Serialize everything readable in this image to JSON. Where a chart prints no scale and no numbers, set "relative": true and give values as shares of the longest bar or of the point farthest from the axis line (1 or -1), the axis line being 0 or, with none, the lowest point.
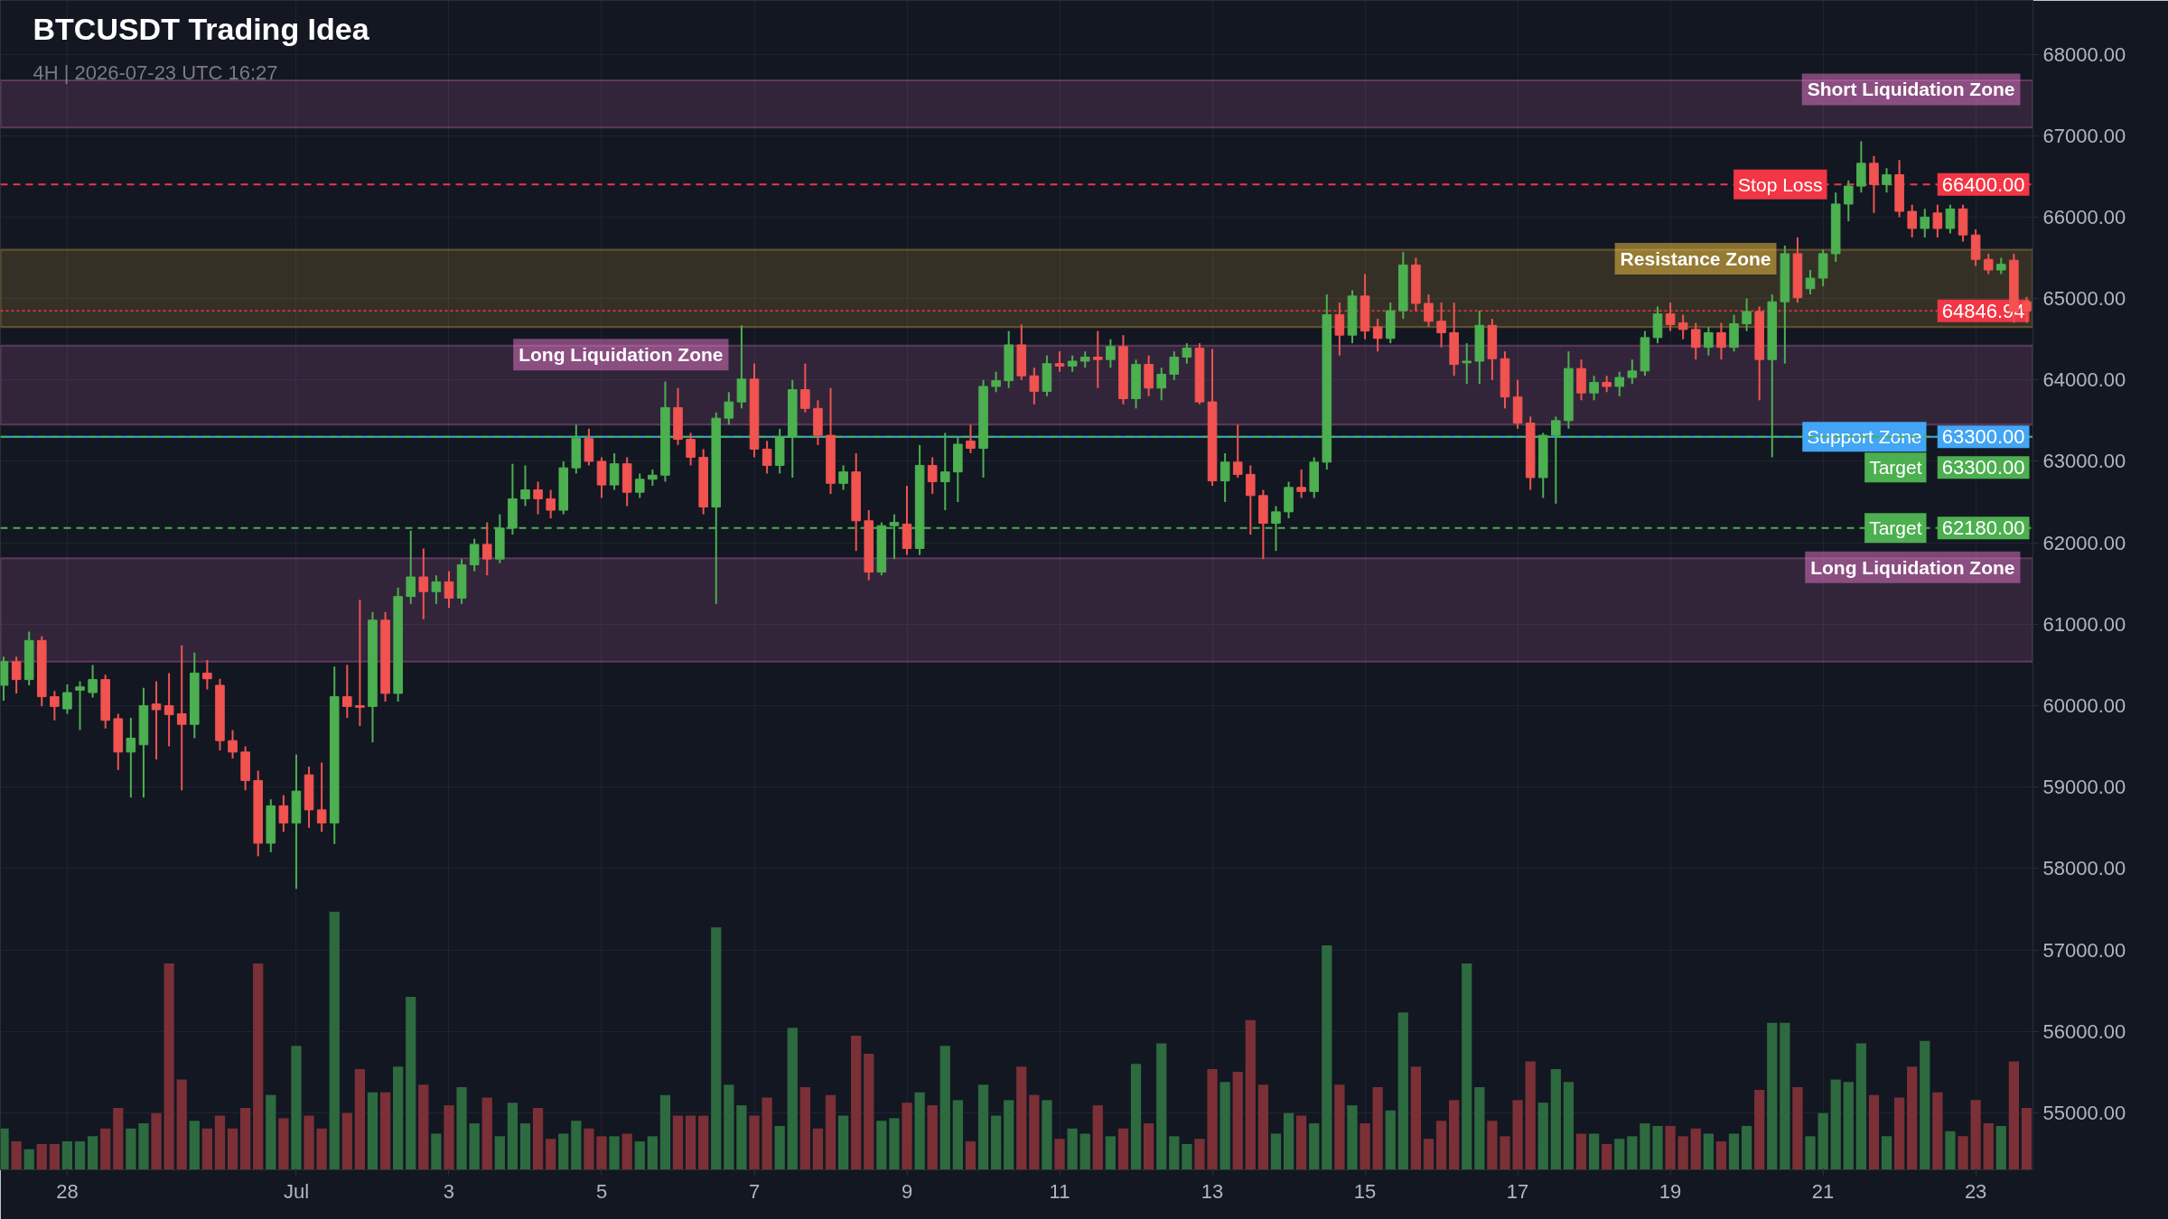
{
  "chart_data": [
    {
      "type": "candlestick",
      "title": "BTCUSDT Trading Idea",
      "subtitle": "4H | 2026-07-23 UTC 16:27",
      "x": [
        "2026-06-27T04:00",
        "2026-06-27T08:00",
        "2026-06-27T12:00",
        "2026-06-27T16:00",
        "2026-06-27T20:00",
        "2026-06-28T00:00",
        "2026-06-28T04:00",
        "2026-06-28T08:00",
        "2026-06-28T12:00",
        "2026-06-28T16:00",
        "2026-06-28T20:00",
        "2026-06-29T00:00",
        "2026-06-29T04:00",
        "2026-06-29T08:00",
        "2026-06-29T12:00",
        "2026-06-29T16:00",
        "2026-06-29T20:00",
        "2026-06-30T00:00",
        "2026-06-30T04:00",
        "2026-06-30T08:00",
        "2026-06-30T12:00",
        "2026-06-30T16:00",
        "2026-06-30T20:00",
        "2026-07-01T00:00",
        "2026-07-01T04:00",
        "2026-07-01T08:00",
        "2026-07-01T12:00",
        "2026-07-01T16:00",
        "2026-07-01T20:00",
        "2026-07-02T00:00",
        "2026-07-02T04:00",
        "2026-07-02T08:00",
        "2026-07-02T12:00",
        "2026-07-02T16:00",
        "2026-07-02T20:00",
        "2026-07-03T00:00",
        "2026-07-03T04:00",
        "2026-07-03T08:00",
        "2026-07-03T12:00",
        "2026-07-03T16:00",
        "2026-07-03T20:00",
        "2026-07-04T00:00",
        "2026-07-04T04:00",
        "2026-07-04T08:00",
        "2026-07-04T12:00",
        "2026-07-04T16:00",
        "2026-07-04T20:00",
        "2026-07-05T00:00",
        "2026-07-05T04:00",
        "2026-07-05T08:00",
        "2026-07-05T12:00",
        "2026-07-05T16:00",
        "2026-07-05T20:00",
        "2026-07-06T00:00",
        "2026-07-06T04:00",
        "2026-07-06T08:00",
        "2026-07-06T12:00",
        "2026-07-06T16:00",
        "2026-07-06T20:00",
        "2026-07-07T00:00",
        "2026-07-07T04:00",
        "2026-07-07T08:00",
        "2026-07-07T12:00",
        "2026-07-07T16:00",
        "2026-07-07T20:00",
        "2026-07-08T00:00",
        "2026-07-08T04:00",
        "2026-07-08T08:00",
        "2026-07-08T12:00",
        "2026-07-08T16:00",
        "2026-07-08T20:00",
        "2026-07-09T00:00",
        "2026-07-09T04:00",
        "2026-07-09T08:00",
        "2026-07-09T12:00",
        "2026-07-09T16:00",
        "2026-07-09T20:00",
        "2026-07-10T00:00",
        "2026-07-10T04:00",
        "2026-07-10T08:00",
        "2026-07-10T12:00",
        "2026-07-10T16:00",
        "2026-07-10T20:00",
        "2026-07-11T00:00",
        "2026-07-11T04:00",
        "2026-07-11T08:00",
        "2026-07-11T12:00",
        "2026-07-11T16:00",
        "2026-07-11T20:00",
        "2026-07-12T00:00",
        "2026-07-12T04:00",
        "2026-07-12T08:00",
        "2026-07-12T12:00",
        "2026-07-12T16:00",
        "2026-07-12T20:00",
        "2026-07-13T00:00",
        "2026-07-13T04:00",
        "2026-07-13T08:00",
        "2026-07-13T12:00",
        "2026-07-13T16:00",
        "2026-07-13T20:00",
        "2026-07-14T00:00",
        "2026-07-14T04:00",
        "2026-07-14T08:00",
        "2026-07-14T12:00",
        "2026-07-14T16:00",
        "2026-07-14T20:00",
        "2026-07-15T00:00",
        "2026-07-15T04:00",
        "2026-07-15T08:00",
        "2026-07-15T12:00",
        "2026-07-15T16:00",
        "2026-07-15T20:00",
        "2026-07-16T00:00",
        "2026-07-16T04:00",
        "2026-07-16T08:00",
        "2026-07-16T12:00",
        "2026-07-16T16:00",
        "2026-07-16T20:00",
        "2026-07-17T00:00",
        "2026-07-17T04:00",
        "2026-07-17T08:00",
        "2026-07-17T12:00",
        "2026-07-17T16:00",
        "2026-07-17T20:00",
        "2026-07-18T00:00",
        "2026-07-18T04:00",
        "2026-07-18T08:00",
        "2026-07-18T12:00",
        "2026-07-18T16:00",
        "2026-07-18T20:00",
        "2026-07-19T00:00",
        "2026-07-19T04:00",
        "2026-07-19T08:00",
        "2026-07-19T12:00",
        "2026-07-19T16:00",
        "2026-07-19T20:00",
        "2026-07-20T00:00",
        "2026-07-20T04:00",
        "2026-07-20T08:00",
        "2026-07-20T12:00",
        "2026-07-20T16:00",
        "2026-07-20T20:00",
        "2026-07-21T00:00",
        "2026-07-21T04:00",
        "2026-07-21T08:00",
        "2026-07-21T12:00",
        "2026-07-21T16:00",
        "2026-07-21T20:00",
        "2026-07-22T00:00",
        "2026-07-22T04:00",
        "2026-07-22T08:00",
        "2026-07-22T12:00",
        "2026-07-22T16:00",
        "2026-07-22T20:00",
        "2026-07-23T00:00",
        "2026-07-23T04:00",
        "2026-07-23T08:00",
        "2026-07-23T12:00",
        "2026-07-23T16:00"
      ],
      "ohlc": [
        [
          60250,
          60600,
          60060,
          60540
        ],
        [
          60540,
          60600,
          60150,
          60320
        ],
        [
          60320,
          60910,
          60250,
          60800
        ],
        [
          60800,
          60850,
          59990,
          60110
        ],
        [
          60110,
          60180,
          59820,
          59990
        ],
        [
          59960,
          60260,
          59900,
          60160
        ],
        [
          60190,
          60300,
          59700,
          60230
        ],
        [
          60160,
          60500,
          60100,
          60320
        ],
        [
          60320,
          60380,
          59720,
          59820
        ],
        [
          59840,
          59900,
          59210,
          59430
        ],
        [
          59430,
          59850,
          58870,
          59600
        ],
        [
          59520,
          60220,
          58870,
          60000
        ],
        [
          60020,
          60300,
          59340,
          59950
        ],
        [
          60000,
          60400,
          59500,
          59890
        ],
        [
          59900,
          60740,
          58960,
          59770
        ],
        [
          59770,
          60650,
          59600,
          60400
        ],
        [
          60400,
          60560,
          60200,
          60330
        ],
        [
          60250,
          60330,
          59450,
          59570
        ],
        [
          59570,
          59700,
          59350,
          59430
        ],
        [
          59430,
          59500,
          58960,
          59080
        ],
        [
          59080,
          59200,
          58150,
          58310
        ],
        [
          58310,
          58850,
          58200,
          58770
        ],
        [
          58770,
          58900,
          58450,
          58560
        ],
        [
          58560,
          59400,
          57750,
          58950
        ],
        [
          59150,
          59250,
          58500,
          58720
        ],
        [
          58720,
          59300,
          58450,
          58560
        ],
        [
          58560,
          60480,
          58300,
          60110
        ],
        [
          60110,
          60500,
          59850,
          59990
        ],
        [
          60000,
          61300,
          59750,
          59980
        ],
        [
          59990,
          61150,
          59550,
          61050
        ],
        [
          61050,
          61150,
          60050,
          60150
        ],
        [
          60150,
          61450,
          60050,
          61340
        ],
        [
          61340,
          62150,
          61250,
          61580
        ],
        [
          61580,
          61930,
          61060,
          61400
        ],
        [
          61400,
          61600,
          61250,
          61520
        ],
        [
          61520,
          61650,
          61200,
          61320
        ],
        [
          61320,
          61800,
          61250,
          61730
        ],
        [
          61730,
          62050,
          61650,
          61980
        ],
        [
          61980,
          62250,
          61600,
          61800
        ],
        [
          61800,
          62350,
          61750,
          62180
        ],
        [
          62180,
          62970,
          62100,
          62540
        ],
        [
          62540,
          62950,
          62450,
          62650
        ],
        [
          62650,
          62750,
          62350,
          62540
        ],
        [
          62540,
          62650,
          62300,
          62400
        ],
        [
          62400,
          63000,
          62350,
          62920
        ],
        [
          62920,
          63450,
          62850,
          63280
        ],
        [
          63280,
          63400,
          62950,
          63000
        ],
        [
          63000,
          63050,
          62550,
          62710
        ],
        [
          62710,
          63100,
          62650,
          62970
        ],
        [
          62970,
          63050,
          62450,
          62620
        ],
        [
          62620,
          62850,
          62550,
          62780
        ],
        [
          62780,
          62900,
          62700,
          62830
        ],
        [
          62830,
          63980,
          62750,
          63660
        ],
        [
          63660,
          63900,
          63200,
          63270
        ],
        [
          63270,
          63350,
          62950,
          63050
        ],
        [
          63050,
          63150,
          62350,
          62440
        ],
        [
          62440,
          63600,
          61250,
          63530
        ],
        [
          63530,
          63850,
          63450,
          63730
        ],
        [
          63730,
          64670,
          63650,
          64010
        ],
        [
          64010,
          64200,
          63050,
          63150
        ],
        [
          63150,
          63250,
          62850,
          62950
        ],
        [
          62950,
          63400,
          62850,
          63300
        ],
        [
          63300,
          64000,
          62800,
          63880
        ],
        [
          63880,
          64200,
          63600,
          63650
        ],
        [
          63650,
          63750,
          63200,
          63320
        ],
        [
          63320,
          63900,
          62600,
          62730
        ],
        [
          62730,
          62950,
          62650,
          62870
        ],
        [
          62870,
          63100,
          61900,
          62270
        ],
        [
          62270,
          62400,
          61540,
          61640
        ],
        [
          61640,
          62250,
          61600,
          62210
        ],
        [
          62210,
          62350,
          61800,
          62250
        ],
        [
          62230,
          62700,
          61850,
          61930
        ],
        [
          61930,
          63200,
          61850,
          62950
        ],
        [
          62950,
          63050,
          62600,
          62750
        ],
        [
          62750,
          63350,
          62400,
          62870
        ],
        [
          62870,
          63300,
          62500,
          63210
        ],
        [
          63250,
          63450,
          63100,
          63160
        ],
        [
          63160,
          64000,
          62800,
          63920
        ],
        [
          63920,
          64100,
          63850,
          63990
        ],
        [
          63990,
          64600,
          63900,
          64430
        ],
        [
          64430,
          64680,
          64000,
          64050
        ],
        [
          64050,
          64150,
          63700,
          63860
        ],
        [
          63860,
          64300,
          63800,
          64200
        ],
        [
          64200,
          64350,
          64100,
          64170
        ],
        [
          64170,
          64300,
          64100,
          64230
        ],
        [
          64230,
          64350,
          64150,
          64280
        ],
        [
          64280,
          64600,
          63900,
          64250
        ],
        [
          64250,
          64500,
          64150,
          64410
        ],
        [
          64410,
          64550,
          63700,
          63770
        ],
        [
          63770,
          64250,
          63650,
          64190
        ],
        [
          64190,
          64300,
          63800,
          63900
        ],
        [
          63900,
          64150,
          63750,
          64070
        ],
        [
          64070,
          64350,
          64000,
          64280
        ],
        [
          64280,
          64450,
          64200,
          64390
        ],
        [
          64390,
          64450,
          63700,
          63730
        ],
        [
          63730,
          64380,
          62700,
          62760
        ],
        [
          62760,
          63100,
          62500,
          62990
        ],
        [
          62990,
          63450,
          62800,
          62840
        ],
        [
          62840,
          62950,
          62100,
          62580
        ],
        [
          62580,
          62650,
          61800,
          62240
        ],
        [
          62240,
          62450,
          61900,
          62380
        ],
        [
          62380,
          62750,
          62300,
          62680
        ],
        [
          62680,
          62900,
          62550,
          62630
        ],
        [
          62630,
          63050,
          62550,
          62990
        ],
        [
          62990,
          65050,
          62900,
          64800
        ],
        [
          64800,
          64950,
          64300,
          64550
        ],
        [
          64550,
          65100,
          64450,
          65030
        ],
        [
          65030,
          65300,
          64500,
          64600
        ],
        [
          64650,
          64750,
          64350,
          64510
        ],
        [
          64510,
          64950,
          64450,
          64850
        ],
        [
          64850,
          65570,
          64750,
          65410
        ],
        [
          65410,
          65500,
          64850,
          64940
        ],
        [
          64940,
          65050,
          64650,
          64720
        ],
        [
          64720,
          64950,
          64400,
          64580
        ],
        [
          64580,
          64950,
          64050,
          64190
        ],
        [
          64210,
          64450,
          63950,
          64230
        ],
        [
          64230,
          64850,
          63950,
          64670
        ],
        [
          64670,
          64750,
          64000,
          64260
        ],
        [
          64260,
          64350,
          63650,
          63790
        ],
        [
          63790,
          64000,
          63400,
          63470
        ],
        [
          63470,
          63550,
          62650,
          62800
        ],
        [
          62800,
          63350,
          62550,
          63320
        ],
        [
          63320,
          63550,
          62480,
          63500
        ],
        [
          63500,
          64350,
          63400,
          64140
        ],
        [
          64140,
          64250,
          63750,
          63840
        ],
        [
          63840,
          64050,
          63750,
          63970
        ],
        [
          63970,
          64050,
          63850,
          63920
        ],
        [
          63920,
          64100,
          63800,
          64030
        ],
        [
          64030,
          64250,
          63950,
          64110
        ],
        [
          64110,
          64600,
          64050,
          64520
        ],
        [
          64520,
          64900,
          64450,
          64810
        ],
        [
          64810,
          64950,
          64600,
          64680
        ],
        [
          64700,
          64800,
          64500,
          64620
        ],
        [
          64620,
          64700,
          64250,
          64400
        ],
        [
          64400,
          64650,
          64300,
          64580
        ],
        [
          64580,
          64700,
          64250,
          64400
        ],
        [
          64400,
          64800,
          64350,
          64690
        ],
        [
          64690,
          65000,
          64600,
          64840
        ],
        [
          64840,
          64900,
          63750,
          64250
        ],
        [
          64250,
          65050,
          63050,
          64960
        ],
        [
          64960,
          65650,
          64200,
          65550
        ],
        [
          65550,
          65750,
          64950,
          65010
        ],
        [
          65120,
          65350,
          65050,
          65250
        ],
        [
          65250,
          65600,
          65150,
          65550
        ],
        [
          65550,
          66300,
          65450,
          66160
        ],
        [
          66160,
          66450,
          65950,
          66380
        ],
        [
          66380,
          66930,
          66300,
          66660
        ],
        [
          66660,
          66750,
          66050,
          66400
        ],
        [
          66400,
          66600,
          66300,
          66520
        ],
        [
          66520,
          66700,
          66000,
          66070
        ],
        [
          66070,
          66150,
          65750,
          65860
        ],
        [
          65860,
          66100,
          65750,
          66000
        ],
        [
          66050,
          66150,
          65750,
          65860
        ],
        [
          65860,
          66150,
          65800,
          66100
        ],
        [
          66100,
          66150,
          65700,
          65780
        ],
        [
          65780,
          65850,
          65400,
          65480
        ],
        [
          65480,
          65550,
          65300,
          65350
        ],
        [
          65350,
          65500,
          65300,
          65420
        ],
        [
          65470,
          65550,
          64700,
          64840
        ],
        [
          64960,
          65020,
          64700,
          64846.94
        ]
      ],
      "xlim": [
        "2026-06-27T03:00",
        "2026-07-23T18:00"
      ],
      "ylim": [
        54300,
        68660
      ],
      "yticks": [
        {
          "value": 55000,
          "label": "55000.00"
        },
        {
          "value": 56000,
          "label": "56000.00"
        },
        {
          "value": 57000,
          "label": "57000.00"
        },
        {
          "value": 58000,
          "label": "58000.00"
        },
        {
          "value": 59000,
          "label": "59000.00"
        },
        {
          "value": 60000,
          "label": "60000.00"
        },
        {
          "value": 61000,
          "label": "61000.00"
        },
        {
          "value": 62000,
          "label": "62000.00"
        },
        {
          "value": 63000,
          "label": "63000.00"
        },
        {
          "value": 64000,
          "label": "64000.00"
        },
        {
          "value": 65000,
          "label": "65000.00"
        },
        {
          "value": 66000,
          "label": "66000.00"
        },
        {
          "value": 67000,
          "label": "67000.00"
        },
        {
          "value": 68000,
          "label": "68000.00"
        }
      ],
      "grid": true,
      "tick_labels": "y",
      "xticks": [
        {
          "value": "2026-06-28",
          "label": null
        },
        {
          "value": "2026-07-01",
          "label": null
        },
        {
          "value": "2026-07-03",
          "label": null
        },
        {
          "value": "2026-07-05",
          "label": null
        },
        {
          "value": "2026-07-07",
          "label": null
        },
        {
          "value": "2026-07-09",
          "label": null
        },
        {
          "value": "2026-07-11",
          "label": null
        },
        {
          "value": "2026-07-13",
          "label": null
        },
        {
          "value": "2026-07-15",
          "label": null
        },
        {
          "value": "2026-07-17",
          "label": null
        },
        {
          "value": "2026-07-19",
          "label": null
        },
        {
          "value": "2026-07-21",
          "label": null
        },
        {
          "value": "2026-07-23",
          "label": null
        }
      ],
      "bands": [
        {
          "axis": "y",
          "from": 67100,
          "to": 67680,
          "label": "Short Liquidation Zone",
          "color": "#e478c8"
        },
        {
          "axis": "y",
          "from": 64650,
          "to": 65600,
          "label": "Resistance Zone",
          "color": "#f5c542"
        },
        {
          "axis": "y",
          "from": 63450,
          "to": 64420,
          "label": "Long Liquidation Zone",
          "color": "#e478c8"
        },
        {
          "axis": "y",
          "from": 60540,
          "to": 61810,
          "label": "Long Liquidation Zone",
          "color": "#e478c8"
        }
      ],
      "ref_lines": [
        {
          "axis": "y",
          "value": 66400,
          "label": "Stop Loss",
          "color": "#f23645",
          "line_style": "dashed"
        },
        {
          "axis": "y",
          "value": 64846.94,
          "label": null,
          "color": "#f23645",
          "line_style": "dotted"
        },
        {
          "axis": "y",
          "value": 63300,
          "label": "Support Zone",
          "color": "#42a5f5",
          "line_style": "solid"
        },
        {
          "axis": "y",
          "value": 63300,
          "label": "Target",
          "color": "#4caf50",
          "line_style": "dashed"
        },
        {
          "axis": "y",
          "value": 62180,
          "label": "Target",
          "color": "#4caf50",
          "line_style": "dashed"
        }
      ],
      "annotations": [
        {
          "text": "66400.00",
          "y": 66400
        },
        {
          "text": "64846.94",
          "y": 64846.94
        },
        {
          "text": "63300.00",
          "y": 63300
        },
        {
          "text": "63300.00",
          "y": 63300
        },
        {
          "text": "62180.00",
          "y": 62180
        }
      ]
    },
    {
      "type": "bar",
      "relative": true,
      "xlim": [
        "2026-06-27T03:00",
        "2026-07-23T18:00"
      ],
      "xticks": [
        {
          "value": "2026-06-28",
          "label": "28"
        },
        {
          "value": "2026-07-01",
          "label": "Jul"
        },
        {
          "value": "2026-07-03",
          "label": "3"
        },
        {
          "value": "2026-07-05",
          "label": "5"
        },
        {
          "value": "2026-07-07",
          "label": "7"
        },
        {
          "value": "2026-07-09",
          "label": "9"
        },
        {
          "value": "2026-07-11",
          "label": "11"
        },
        {
          "value": "2026-07-13",
          "label": "13"
        },
        {
          "value": "2026-07-15",
          "label": "15"
        },
        {
          "value": "2026-07-17",
          "label": "17"
        },
        {
          "value": "2026-07-19",
          "label": "19"
        },
        {
          "value": "2026-07-21",
          "label": "21"
        },
        {
          "value": "2026-07-23",
          "label": "23"
        }
      ],
      "x": [
        "2026-06-27T04:00",
        "2026-06-27T08:00",
        "2026-06-27T12:00",
        "2026-06-27T16:00",
        "2026-06-27T20:00",
        "2026-06-28T00:00",
        "2026-06-28T04:00",
        "2026-06-28T08:00",
        "2026-06-28T12:00",
        "2026-06-28T16:00",
        "2026-06-28T20:00",
        "2026-06-29T00:00",
        "2026-06-29T04:00",
        "2026-06-29T08:00",
        "2026-06-29T12:00",
        "2026-06-29T16:00",
        "2026-06-29T20:00",
        "2026-06-30T00:00",
        "2026-06-30T04:00",
        "2026-06-30T08:00",
        "2026-06-30T12:00",
        "2026-06-30T16:00",
        "2026-06-30T20:00",
        "2026-07-01T00:00",
        "2026-07-01T04:00",
        "2026-07-01T08:00",
        "2026-07-01T12:00",
        "2026-07-01T16:00",
        "2026-07-01T20:00",
        "2026-07-02T00:00",
        "2026-07-02T04:00",
        "2026-07-02T08:00",
        "2026-07-02T12:00",
        "2026-07-02T16:00",
        "2026-07-02T20:00",
        "2026-07-03T00:00",
        "2026-07-03T04:00",
        "2026-07-03T08:00",
        "2026-07-03T12:00",
        "2026-07-03T16:00",
        "2026-07-03T20:00",
        "2026-07-04T00:00",
        "2026-07-04T04:00",
        "2026-07-04T08:00",
        "2026-07-04T12:00",
        "2026-07-04T16:00",
        "2026-07-04T20:00",
        "2026-07-05T00:00",
        "2026-07-05T04:00",
        "2026-07-05T08:00",
        "2026-07-05T12:00",
        "2026-07-05T16:00",
        "2026-07-05T20:00",
        "2026-07-06T00:00",
        "2026-07-06T04:00",
        "2026-07-06T08:00",
        "2026-07-06T12:00",
        "2026-07-06T16:00",
        "2026-07-06T20:00",
        "2026-07-07T00:00",
        "2026-07-07T04:00",
        "2026-07-07T08:00",
        "2026-07-07T12:00",
        "2026-07-07T16:00",
        "2026-07-07T20:00",
        "2026-07-08T00:00",
        "2026-07-08T04:00",
        "2026-07-08T08:00",
        "2026-07-08T12:00",
        "2026-07-08T16:00",
        "2026-07-08T20:00",
        "2026-07-09T00:00",
        "2026-07-09T04:00",
        "2026-07-09T08:00",
        "2026-07-09T12:00",
        "2026-07-09T16:00",
        "2026-07-09T20:00",
        "2026-07-10T00:00",
        "2026-07-10T04:00",
        "2026-07-10T08:00",
        "2026-07-10T12:00",
        "2026-07-10T16:00",
        "2026-07-10T20:00",
        "2026-07-11T00:00",
        "2026-07-11T04:00",
        "2026-07-11T08:00",
        "2026-07-11T12:00",
        "2026-07-11T16:00",
        "2026-07-11T20:00",
        "2026-07-12T00:00",
        "2026-07-12T04:00",
        "2026-07-12T08:00",
        "2026-07-12T12:00",
        "2026-07-12T16:00",
        "2026-07-12T20:00",
        "2026-07-13T00:00",
        "2026-07-13T04:00",
        "2026-07-13T08:00",
        "2026-07-13T12:00",
        "2026-07-13T16:00",
        "2026-07-13T20:00",
        "2026-07-14T00:00",
        "2026-07-14T04:00",
        "2026-07-14T08:00",
        "2026-07-14T12:00",
        "2026-07-14T16:00",
        "2026-07-14T20:00",
        "2026-07-15T00:00",
        "2026-07-15T04:00",
        "2026-07-15T08:00",
        "2026-07-15T12:00",
        "2026-07-15T16:00",
        "2026-07-15T20:00",
        "2026-07-16T00:00",
        "2026-07-16T04:00",
        "2026-07-16T08:00",
        "2026-07-16T12:00",
        "2026-07-16T16:00",
        "2026-07-16T20:00",
        "2026-07-17T00:00",
        "2026-07-17T04:00",
        "2026-07-17T08:00",
        "2026-07-17T12:00",
        "2026-07-17T16:00",
        "2026-07-17T20:00",
        "2026-07-18T00:00",
        "2026-07-18T04:00",
        "2026-07-18T08:00",
        "2026-07-18T12:00",
        "2026-07-18T16:00",
        "2026-07-18T20:00",
        "2026-07-19T00:00",
        "2026-07-19T04:00",
        "2026-07-19T08:00",
        "2026-07-19T12:00",
        "2026-07-19T16:00",
        "2026-07-19T20:00",
        "2026-07-20T00:00",
        "2026-07-20T04:00",
        "2026-07-20T08:00",
        "2026-07-20T12:00",
        "2026-07-20T16:00",
        "2026-07-20T20:00",
        "2026-07-21T00:00",
        "2026-07-21T04:00",
        "2026-07-21T08:00",
        "2026-07-21T12:00",
        "2026-07-21T16:00",
        "2026-07-21T20:00",
        "2026-07-22T00:00",
        "2026-07-22T04:00",
        "2026-07-22T08:00",
        "2026-07-22T12:00",
        "2026-07-22T16:00",
        "2026-07-22T20:00",
        "2026-07-23T00:00",
        "2026-07-23T04:00",
        "2026-07-23T08:00",
        "2026-07-23T12:00",
        "2026-07-23T16:00"
      ],
      "values": [
        0.16,
        0.11,
        0.08,
        0.1,
        0.1,
        0.11,
        0.11,
        0.13,
        0.16,
        0.24,
        0.16,
        0.18,
        0.22,
        0.8,
        0.35,
        0.19,
        0.16,
        0.21,
        0.16,
        0.24,
        0.8,
        0.29,
        0.2,
        0.48,
        0.21,
        0.16,
        1,
        0.22,
        0.39,
        0.3,
        0.3,
        0.4,
        0.67,
        0.33,
        0.14,
        0.25,
        0.32,
        0.18,
        0.28,
        0.13,
        0.26,
        0.18,
        0.24,
        0.12,
        0.14,
        0.19,
        0.16,
        0.13,
        0.13,
        0.14,
        0.11,
        0.13,
        0.29,
        0.21,
        0.21,
        0.21,
        0.94,
        0.33,
        0.25,
        0.21,
        0.28,
        0.17,
        0.55,
        0.32,
        0.16,
        0.29,
        0.21,
        0.52,
        0.45,
        0.19,
        0.2,
        0.26,
        0.3,
        0.25,
        0.48,
        0.27,
        0.11,
        0.33,
        0.21,
        0.27,
        0.4,
        0.29,
        0.27,
        0.12,
        0.16,
        0.14,
        0.25,
        0.13,
        0.16,
        0.41,
        0.18,
        0.49,
        0.13,
        0.1,
        0.12,
        0.39,
        0.34,
        0.38,
        0.58,
        0.33,
        0.14,
        0.22,
        0.21,
        0.18,
        0.87,
        0.33,
        0.25,
        0.18,
        0.32,
        0.23,
        0.61,
        0.4,
        0.12,
        0.19,
        0.27,
        0.8,
        0.32,
        0.19,
        0.13,
        0.27,
        0.42,
        0.26,
        0.39,
        0.34,
        0.14,
        0.14,
        0.1,
        0.12,
        0.13,
        0.18,
        0.17,
        0.17,
        0.13,
        0.16,
        0.14,
        0.11,
        0.14,
        0.17,
        0.31,
        0.57,
        0.57,
        0.32,
        0.13,
        0.22,
        0.35,
        0.34,
        0.49,
        0.29,
        0.13,
        0.28,
        0.4,
        0.5,
        0.3,
        0.15,
        0.13,
        0.27,
        0.18,
        0.17,
        0.42,
        0.24
      ]
    }
  ]
}
